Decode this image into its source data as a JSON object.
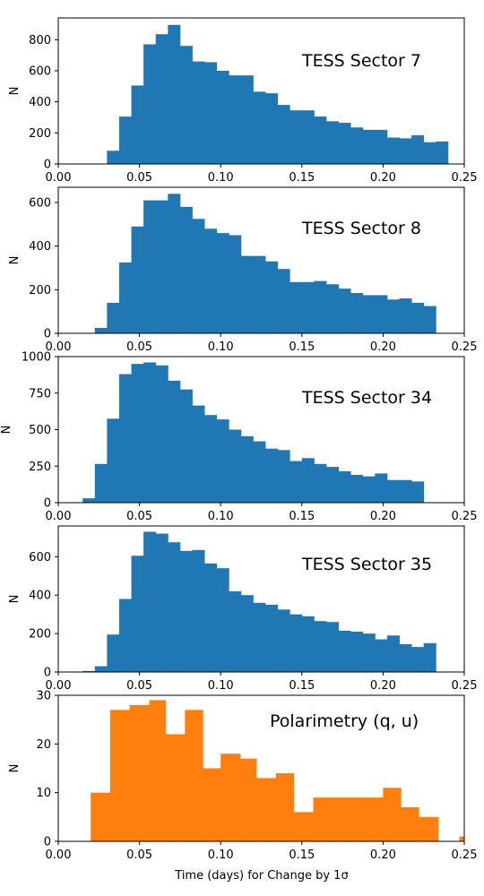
{
  "figure": {
    "xlabel": "Time (days) for Change by 1σ"
  },
  "chart_data": [
    {
      "type": "bar",
      "title": "TESS Sector 7",
      "ylabel": "N",
      "color": "#1f77b4",
      "xlim": [
        0,
        0.25
      ],
      "ylim": [
        0,
        940
      ],
      "xticks": [
        "0.00",
        "0.05",
        "0.10",
        "0.15",
        "0.20",
        "0.25"
      ],
      "yticks": [
        0,
        200,
        400,
        600,
        800
      ],
      "bin_width": 0.0075,
      "bins_start": [
        0.0,
        0.0075,
        0.015,
        0.0225,
        0.03,
        0.0375,
        0.045,
        0.0525,
        0.06,
        0.0675,
        0.075,
        0.0825,
        0.09,
        0.0975,
        0.105,
        0.1125,
        0.12,
        0.1275,
        0.135,
        0.1425,
        0.15,
        0.1575,
        0.165,
        0.1725,
        0.18,
        0.1875,
        0.195,
        0.2025,
        0.21,
        0.2175,
        0.225,
        0.2325,
        0.24,
        0.2475
      ],
      "values": [
        0,
        0,
        0,
        0,
        85,
        305,
        505,
        770,
        835,
        895,
        760,
        660,
        655,
        600,
        570,
        570,
        465,
        455,
        380,
        345,
        345,
        305,
        275,
        265,
        235,
        220,
        220,
        170,
        165,
        185,
        140,
        145,
        0,
        0
      ]
    },
    {
      "type": "bar",
      "title": "TESS Sector 8",
      "ylabel": "N",
      "color": "#1f77b4",
      "xlim": [
        0,
        0.25
      ],
      "ylim": [
        0,
        670
      ],
      "xticks": [
        "0.00",
        "0.05",
        "0.10",
        "0.15",
        "0.20",
        "0.25"
      ],
      "yticks": [
        0,
        200,
        400,
        600
      ],
      "bin_width": 0.0075,
      "bins_start": [
        0.0,
        0.0075,
        0.015,
        0.0225,
        0.03,
        0.0375,
        0.045,
        0.0525,
        0.06,
        0.0675,
        0.075,
        0.0825,
        0.09,
        0.0975,
        0.105,
        0.1125,
        0.12,
        0.1275,
        0.135,
        0.1425,
        0.15,
        0.1575,
        0.165,
        0.1725,
        0.18,
        0.1875,
        0.195,
        0.2025,
        0.21,
        0.2175,
        0.225,
        0.2325,
        0.24,
        0.2475
      ],
      "values": [
        0,
        0,
        0,
        25,
        140,
        325,
        490,
        610,
        610,
        640,
        580,
        525,
        480,
        460,
        450,
        355,
        355,
        330,
        295,
        235,
        235,
        240,
        225,
        205,
        185,
        175,
        175,
        155,
        160,
        140,
        125,
        0,
        0,
        0
      ]
    },
    {
      "type": "bar",
      "title": "TESS Sector 34",
      "ylabel": "N",
      "color": "#1f77b4",
      "xlim": [
        0,
        0.25
      ],
      "ylim": [
        0,
        1000
      ],
      "xticks": [
        "0.00",
        "0.05",
        "0.10",
        "0.15",
        "0.20",
        "0.25"
      ],
      "yticks": [
        0,
        250,
        500,
        750,
        1000
      ],
      "bin_width": 0.0075,
      "bins_start": [
        0.0,
        0.0075,
        0.015,
        0.0225,
        0.03,
        0.0375,
        0.045,
        0.0525,
        0.06,
        0.0675,
        0.075,
        0.0825,
        0.09,
        0.0975,
        0.105,
        0.1125,
        0.12,
        0.1275,
        0.135,
        0.1425,
        0.15,
        0.1575,
        0.165,
        0.1725,
        0.18,
        0.1875,
        0.195,
        0.2025,
        0.21,
        0.2175,
        0.225,
        0.2325,
        0.24,
        0.2475
      ],
      "values": [
        0,
        0,
        30,
        265,
        575,
        880,
        950,
        960,
        940,
        835,
        775,
        665,
        600,
        570,
        500,
        455,
        420,
        370,
        360,
        285,
        305,
        265,
        245,
        215,
        190,
        180,
        200,
        155,
        155,
        145,
        0,
        0,
        0,
        0
      ]
    },
    {
      "type": "bar",
      "title": "TESS Sector 35",
      "ylabel": "N",
      "color": "#1f77b4",
      "xlim": [
        0,
        0.25
      ],
      "ylim": [
        0,
        760
      ],
      "xticks": [
        "0.00",
        "0.05",
        "0.10",
        "0.15",
        "0.20",
        "0.25"
      ],
      "yticks": [
        0,
        200,
        400,
        600
      ],
      "bin_width": 0.0075,
      "bins_start": [
        0.0,
        0.0075,
        0.015,
        0.0225,
        0.03,
        0.0375,
        0.045,
        0.0525,
        0.06,
        0.0675,
        0.075,
        0.0825,
        0.09,
        0.0975,
        0.105,
        0.1125,
        0.12,
        0.1275,
        0.135,
        0.1425,
        0.15,
        0.1575,
        0.165,
        0.1725,
        0.18,
        0.1875,
        0.195,
        0.2025,
        0.21,
        0.2175,
        0.225,
        0.2325,
        0.24,
        0.2475
      ],
      "values": [
        0,
        0,
        5,
        30,
        195,
        380,
        605,
        730,
        720,
        675,
        630,
        635,
        565,
        540,
        420,
        400,
        360,
        350,
        325,
        300,
        290,
        265,
        260,
        215,
        210,
        200,
        170,
        190,
        145,
        130,
        150,
        0,
        0,
        0
      ]
    },
    {
      "type": "bar",
      "title": "Polarimetry (q, u)",
      "ylabel": "N",
      "color": "#ff7f0e",
      "xlim": [
        0,
        0.25
      ],
      "ylim": [
        0,
        30
      ],
      "xticks": [
        "0.00",
        "0.05",
        "0.10",
        "0.15",
        "0.20",
        "0.25"
      ],
      "yticks": [
        0,
        10,
        20,
        30
      ],
      "bins": [
        [
          0.02,
          0.032,
          10
        ],
        [
          0.032,
          0.044,
          27
        ],
        [
          0.044,
          0.056,
          28
        ],
        [
          0.056,
          0.066,
          29
        ],
        [
          0.066,
          0.078,
          22
        ],
        [
          0.078,
          0.089,
          27
        ],
        [
          0.089,
          0.1,
          15
        ],
        [
          0.1,
          0.112,
          18
        ],
        [
          0.112,
          0.122,
          17
        ],
        [
          0.122,
          0.134,
          13
        ],
        [
          0.134,
          0.145,
          14
        ],
        [
          0.145,
          0.157,
          6
        ],
        [
          0.157,
          0.2,
          9
        ],
        [
          0.2,
          0.211,
          11
        ],
        [
          0.211,
          0.222,
          7
        ],
        [
          0.222,
          0.234,
          5
        ],
        [
          0.247,
          0.25,
          1
        ]
      ]
    }
  ]
}
